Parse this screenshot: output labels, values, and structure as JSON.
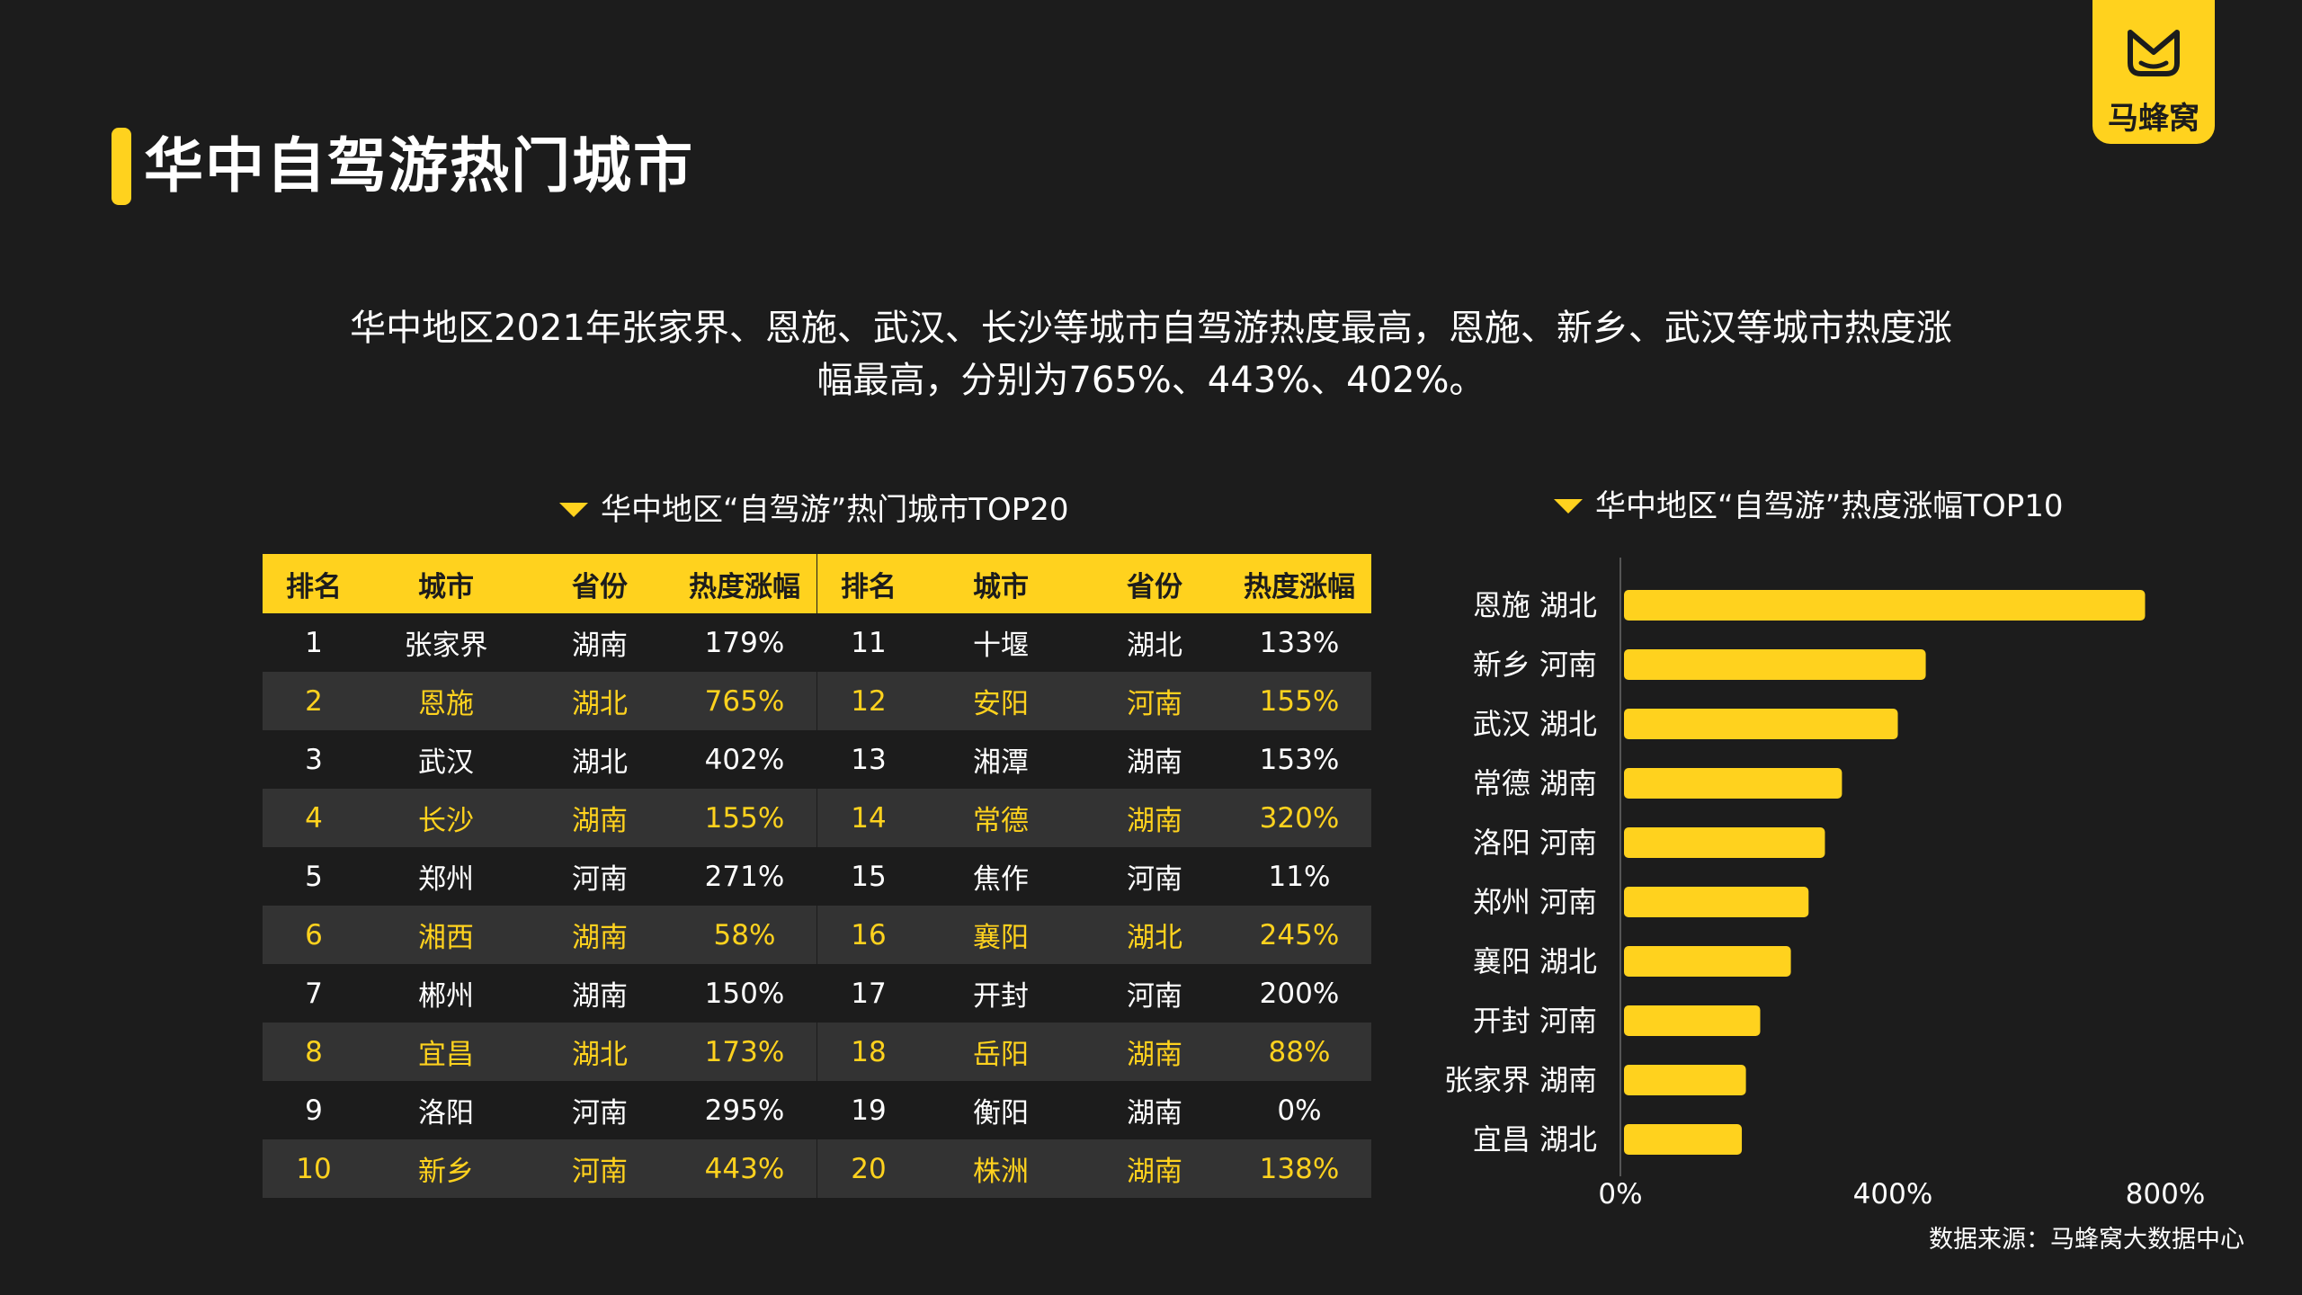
{
  "header": {
    "title": "华中自驾游热门城市"
  },
  "logo": {
    "text": "马蜂窝"
  },
  "summary": {
    "line1": "华中地区2021年张家界、恩施、武汉、长沙等城市自驾游热度最高，恩施、新乡、武汉等城市热度涨",
    "line2": "幅最高，分别为765%、443%、402%。"
  },
  "table_section": {
    "title": "华中地区“自驾游”热门城市TOP20",
    "headers": [
      "排名",
      "城市",
      "省份",
      "热度涨幅"
    ],
    "left_rows": [
      [
        "1",
        "张家界",
        "湖南",
        "179%"
      ],
      [
        "2",
        "恩施",
        "湖北",
        "765%"
      ],
      [
        "3",
        "武汉",
        "湖北",
        "402%"
      ],
      [
        "4",
        "长沙",
        "湖南",
        "155%"
      ],
      [
        "5",
        "郑州",
        "河南",
        "271%"
      ],
      [
        "6",
        "湘西",
        "湖南",
        "58%"
      ],
      [
        "7",
        "郴州",
        "湖南",
        "150%"
      ],
      [
        "8",
        "宜昌",
        "湖北",
        "173%"
      ],
      [
        "9",
        "洛阳",
        "河南",
        "295%"
      ],
      [
        "10",
        "新乡",
        "河南",
        "443%"
      ]
    ],
    "right_rows": [
      [
        "11",
        "十堰",
        "湖北",
        "133%"
      ],
      [
        "12",
        "安阳",
        "河南",
        "155%"
      ],
      [
        "13",
        "湘潭",
        "湖南",
        "153%"
      ],
      [
        "14",
        "常德",
        "湖南",
        "320%"
      ],
      [
        "15",
        "焦作",
        "河南",
        "11%"
      ],
      [
        "16",
        "襄阳",
        "湖北",
        "245%"
      ],
      [
        "17",
        "开封",
        "河南",
        "200%"
      ],
      [
        "18",
        "岳阳",
        "湖南",
        "88%"
      ],
      [
        "19",
        "衡阳",
        "湖南",
        "0%"
      ],
      [
        "20",
        "株洲",
        "湖南",
        "138%"
      ]
    ]
  },
  "chart_section": {
    "title": "华中地区“自驾游”热度涨幅TOP10"
  },
  "chart_data": {
    "type": "bar",
    "orientation": "horizontal",
    "categories": [
      "恩施 湖北",
      "新乡 河南",
      "武汉 湖北",
      "常德 湖南",
      "洛阳 河南",
      "郑州 河南",
      "襄阳 湖北",
      "开封 河南",
      "张家界 湖南",
      "宜昌 湖北"
    ],
    "values": [
      765,
      443,
      402,
      320,
      295,
      271,
      245,
      200,
      179,
      173
    ],
    "xlim": [
      0,
      800
    ],
    "ticks": [
      "0%",
      "400%",
      "800%"
    ],
    "tick_values": [
      0,
      400,
      800
    ],
    "bar_color": "#ffd21e",
    "title": "华中地区“自驾游”热度涨幅TOP10"
  },
  "source": "数据来源：马蜂窝大数据中心",
  "colors": {
    "accent": "#ffd21e",
    "background": "#1c1c1c",
    "stripe": "#333333"
  }
}
